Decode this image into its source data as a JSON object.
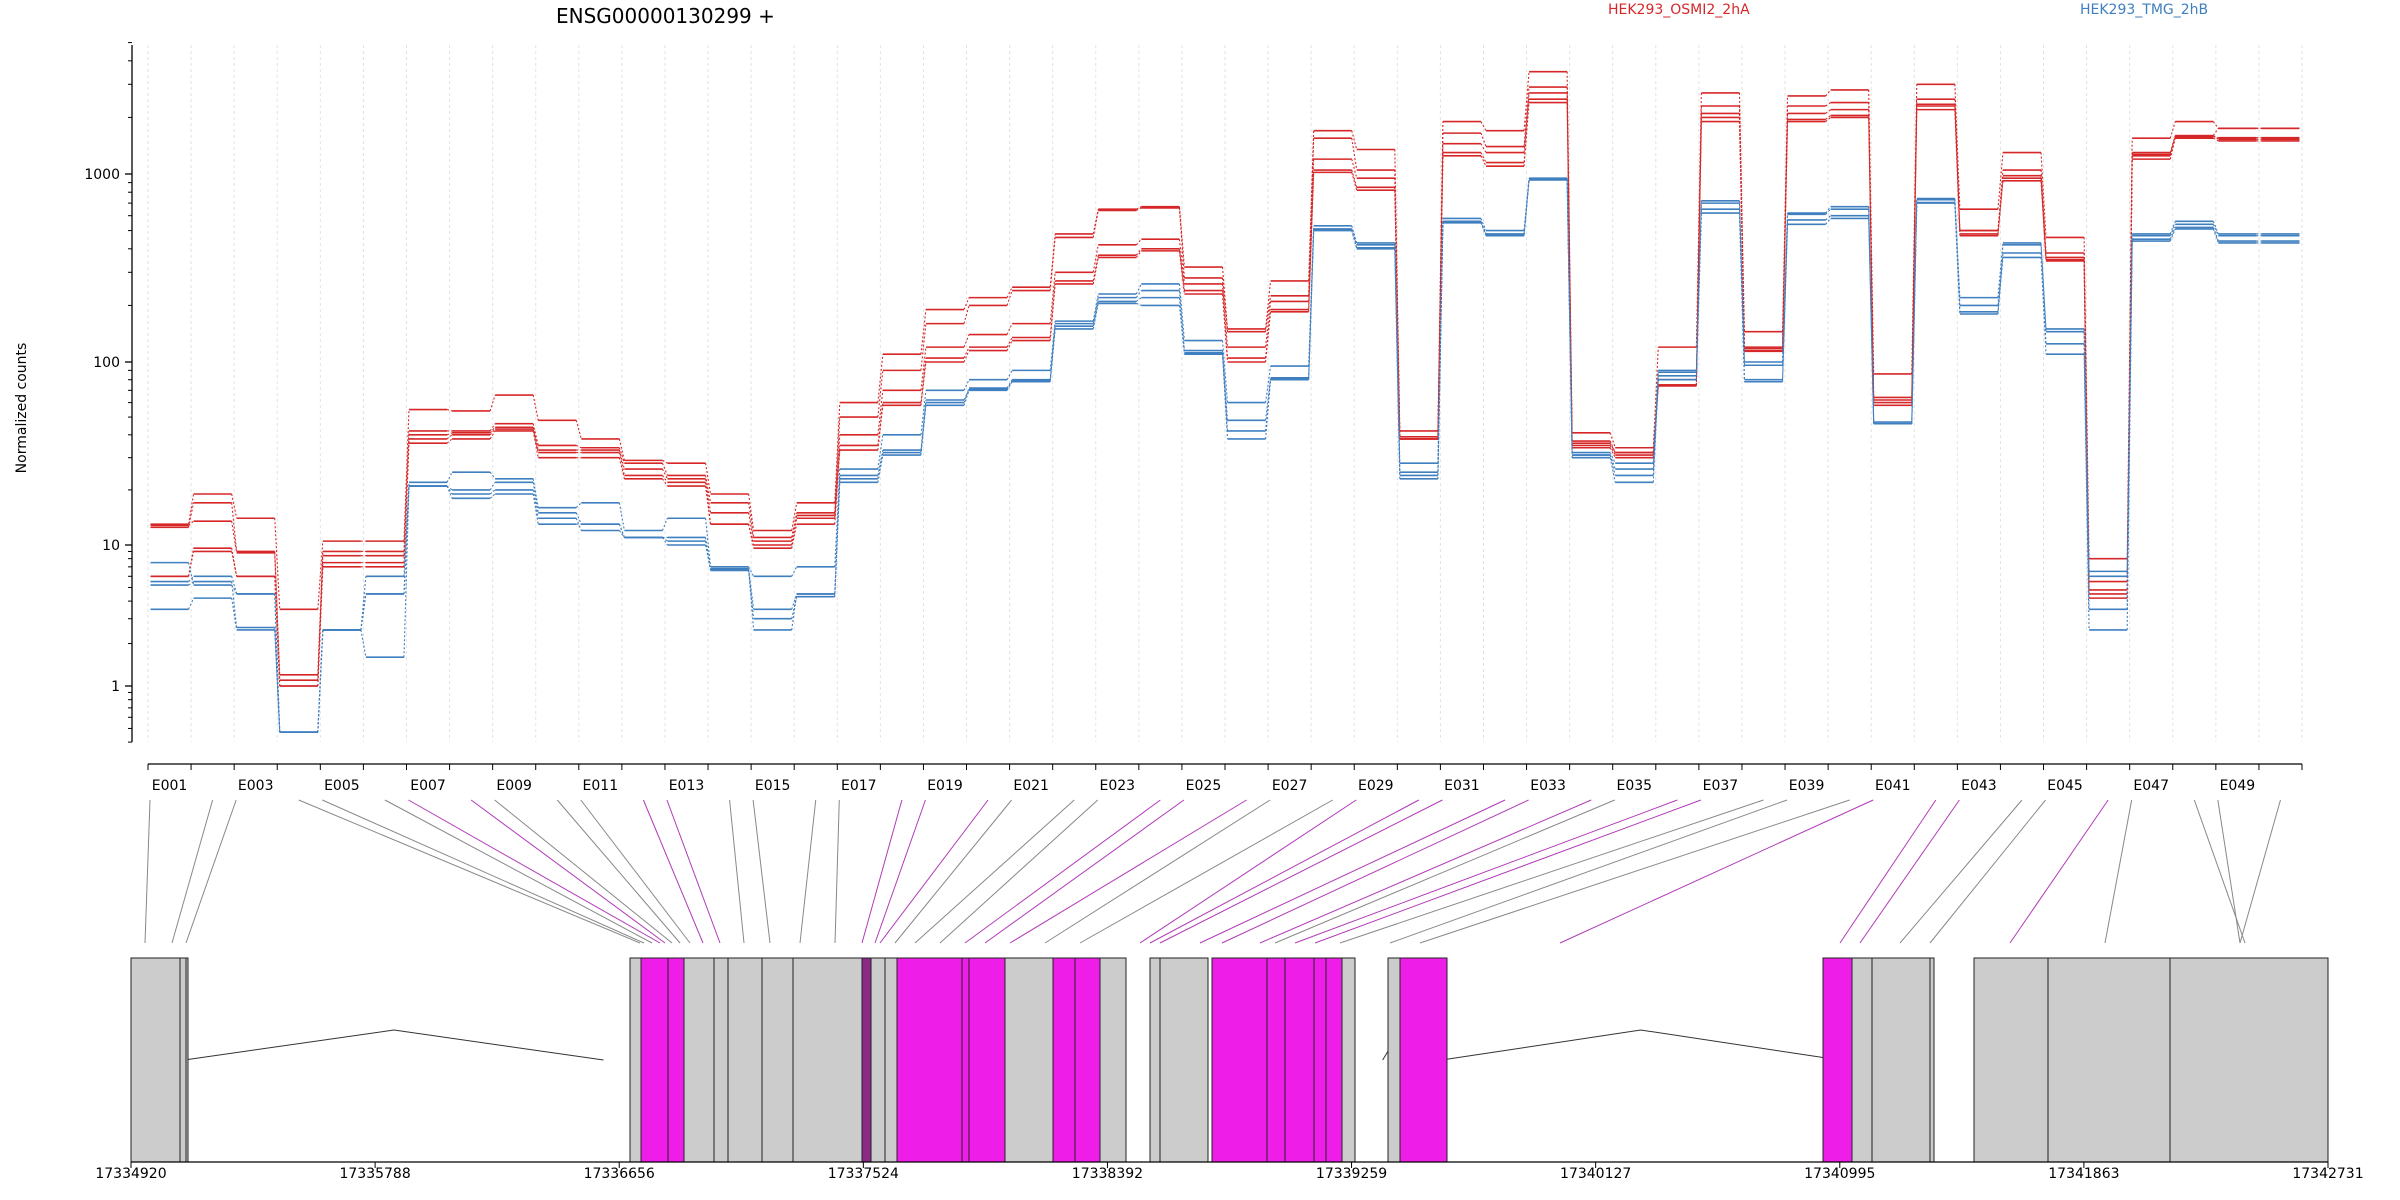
{
  "chart_data": {
    "type": "line",
    "title": "ENSG00000130299 +",
    "ylabel": "Normalized counts",
    "yscale": "log",
    "ylim": [
      0.4,
      5000
    ],
    "yticks": [
      1,
      10,
      100,
      1000
    ],
    "ytick_labels": [
      "1",
      "10",
      "100",
      "1000"
    ],
    "grid": "vertical dotted per exon",
    "legend": [
      "HEK293_OSMI2_2hA",
      "HEK293_TMG_2hB"
    ],
    "legend_placement": "top",
    "colors": {
      "osmi": "#d62728",
      "tmg": "#3f7fbf",
      "exon": "#cccccc",
      "exon_highlight": "#ee1de8",
      "exon_dark": "#8a2a86"
    },
    "exons": [
      "E001",
      "E002",
      "E003",
      "E004",
      "E005",
      "E006",
      "E007",
      "E008",
      "E009",
      "E010",
      "E011",
      "E012",
      "E013",
      "E014",
      "E015",
      "E016",
      "E017",
      "E018",
      "E019",
      "E020",
      "E021",
      "E022",
      "E023",
      "E024",
      "E025",
      "E026",
      "E027",
      "E028",
      "E029",
      "E030",
      "E031",
      "E032",
      "E033",
      "E034",
      "E035",
      "E036",
      "E037",
      "E038",
      "E039",
      "E040",
      "E041",
      "E042",
      "E043",
      "E044",
      "E045",
      "E046",
      "E047",
      "E048",
      "E049",
      "E050"
    ],
    "exon_tick_labels": [
      "E001",
      "E003",
      "E005",
      "E007",
      "E009",
      "E011",
      "E013",
      "E015",
      "E017",
      "E019",
      "E021",
      "E023",
      "E025",
      "E027",
      "E029",
      "E031",
      "E033",
      "E035",
      "E037",
      "E039",
      "E041",
      "E043",
      "E045",
      "E047",
      "E049"
    ],
    "series": [
      {
        "name": "HEK293_OSMI2_2hA",
        "group": "osmi",
        "values": [
          13,
          19,
          14,
          3.5,
          10.5,
          10.5,
          55,
          54,
          66,
          48,
          38,
          29,
          28,
          19,
          12,
          17,
          60,
          110,
          190,
          220,
          250,
          480,
          650,
          670,
          320,
          150,
          270,
          1700,
          1350,
          42,
          1900,
          1700,
          3500,
          41,
          34,
          120,
          2700,
          145,
          2600,
          2800,
          86,
          3000,
          650,
          1300,
          460,
          8,
          1550,
          1900,
          1750,
          1750
        ]
      },
      {
        "name": "HEK293_OSMI2_2hA",
        "group": "osmi",
        "values": [
          12.5,
          17,
          9,
          1.2,
          9,
          9,
          42,
          42,
          46,
          35,
          34,
          28,
          24,
          17,
          11,
          15,
          50,
          90,
          160,
          200,
          240,
          460,
          640,
          660,
          280,
          145,
          225,
          1550,
          1050,
          38,
          1650,
          1400,
          2900,
          36,
          32,
          75,
          2300,
          120,
          2300,
          2400,
          62,
          2500,
          500,
          1050,
          380,
          5.5,
          1300,
          1600,
          1750,
          1750
        ]
      },
      {
        "name": "HEK293_OSMI2_2hA",
        "group": "osmi",
        "values": [
          6,
          9.5,
          6,
          1.0,
          7.5,
          7.5,
          38,
          40,
          43,
          32,
          32,
          24,
          22,
          13,
          10,
          14,
          35,
          60,
          105,
          120,
          135,
          270,
          370,
          400,
          240,
          105,
          190,
          1050,
          850,
          38,
          1300,
          1150,
          2500,
          35,
          31,
          75,
          2000,
          115,
          1950,
          2050,
          60,
          2300,
          480,
          950,
          350,
          4.5,
          1250,
          1600,
          1530,
          1530
        ]
      },
      {
        "name": "HEK293_OSMI2_2hA",
        "group": "osmi",
        "values": [
          6,
          9,
          6,
          1.0,
          7,
          7,
          36,
          38,
          42,
          30,
          30,
          23,
          21,
          13,
          9.5,
          13,
          33,
          58,
          100,
          115,
          130,
          260,
          360,
          390,
          230,
          100,
          185,
          1020,
          820,
          38,
          1250,
          1100,
          2400,
          34,
          30,
          74,
          1900,
          114,
          1900,
          2000,
          58,
          2200,
          470,
          920,
          345,
          4.2,
          1200,
          1550,
          1500,
          1500
        ]
      },
      {
        "name": "HEK293_OSMI2_2hA",
        "group": "osmi",
        "values": [
          12.8,
          13.5,
          8.8,
          1.1,
          8.4,
          8.4,
          40,
          41,
          44,
          33,
          33,
          26,
          23,
          15,
          10.5,
          14.5,
          40,
          70,
          120,
          140,
          160,
          300,
          420,
          450,
          260,
          120,
          210,
          1200,
          950,
          39,
          1450,
          1300,
          2700,
          37,
          32,
          80,
          2100,
          118,
          2100,
          2200,
          64,
          2350,
          500,
          980,
          360,
          4.8,
          1270,
          1580,
          1560,
          1560
        ]
      },
      {
        "name": "HEK293_TMG_2hB",
        "group": "tmg",
        "values": [
          7.5,
          5.2,
          4.5,
          0.47,
          2.5,
          4.5,
          22,
          25,
          23,
          16,
          17,
          12,
          14,
          7,
          6,
          7,
          26,
          40,
          70,
          80,
          90,
          165,
          230,
          260,
          130,
          60,
          95,
          530,
          430,
          28,
          580,
          500,
          950,
          32,
          28,
          90,
          720,
          100,
          620,
          670,
          47,
          740,
          220,
          430,
          150,
          6.5,
          480,
          560,
          480,
          480
        ]
      },
      {
        "name": "HEK293_TMG_2hB",
        "group": "tmg",
        "values": [
          5.5,
          6,
          4.5,
          0.47,
          2.5,
          6,
          21,
          20,
          22,
          15,
          13,
          11,
          11,
          6.8,
          3.5,
          4.5,
          24,
          33,
          60,
          72,
          80,
          160,
          220,
          240,
          115,
          48,
          82,
          510,
          420,
          25,
          560,
          480,
          940,
          31,
          26,
          88,
          700,
          96,
          610,
          650,
          46,
          730,
          200,
          420,
          145,
          6.0,
          470,
          540,
          470,
          470
        ]
      },
      {
        "name": "HEK293_TMG_2hB",
        "group": "tmg",
        "values": [
          3.5,
          4.2,
          2.5,
          0.47,
          2.5,
          1.6,
          21,
          18,
          19,
          13,
          13,
          11,
          10,
          6.7,
          2.5,
          4.5,
          22,
          31,
          58,
          70,
          78,
          150,
          205,
          200,
          110,
          38,
          80,
          500,
          400,
          23,
          550,
          470,
          930,
          30,
          22,
          80,
          620,
          78,
          540,
          580,
          46,
          700,
          180,
          360,
          110,
          2.5,
          440,
          510,
          430,
          430
        ]
      },
      {
        "name": "HEK293_TMG_2hB",
        "group": "tmg",
        "values": [
          5.2,
          5.5,
          2.6,
          0.47,
          2.5,
          4.5,
          21,
          19,
          20,
          14,
          12,
          11,
          10.5,
          6.6,
          3,
          4.3,
          23,
          32,
          62,
          71,
          79,
          155,
          210,
          220,
          112,
          42,
          81,
          505,
          405,
          24,
          555,
          475,
          935,
          31,
          24,
          84,
          650,
          80,
          570,
          600,
          46,
          705,
          185,
          380,
          125,
          3.5,
          450,
          520,
          440,
          440
        ]
      }
    ],
    "gene_model": {
      "coordinate_labels": [
        "17334920",
        "17335788",
        "17336656",
        "17337524",
        "17338392",
        "17339259",
        "17340127",
        "17340995",
        "17341863",
        "17342731"
      ],
      "highlighted_exons": [
        "E013",
        "E014",
        "E020",
        "E024",
        "E025",
        "E026",
        "E029",
        "E030",
        "E031",
        "E032",
        "E033",
        "E036",
        "E037",
        "E041",
        "E042"
      ],
      "dark_exon": "E018"
    }
  }
}
